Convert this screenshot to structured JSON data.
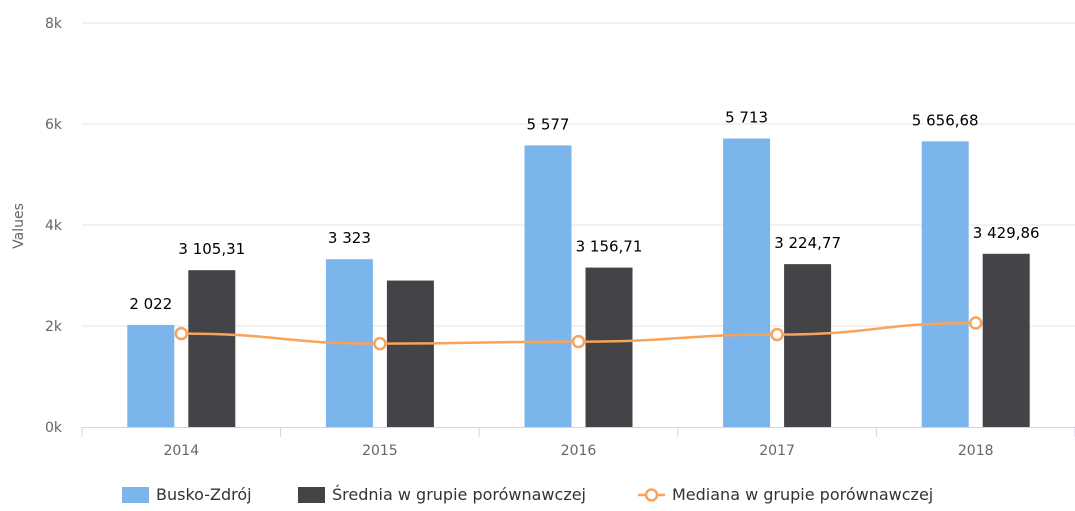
{
  "chart_data": {
    "type": "bar",
    "title": "",
    "xlabel": "",
    "ylabel": "Values",
    "categories": [
      "2014",
      "2015",
      "2016",
      "2017",
      "2018"
    ],
    "ylim": [
      0,
      8000
    ],
    "yticks": [
      0,
      2000,
      4000,
      6000,
      8000
    ],
    "ytick_labels": [
      "0k",
      "2k",
      "4k",
      "6k",
      "8k"
    ],
    "grid": true,
    "legend_position": "bottom",
    "series": [
      {
        "name": "Busko-Zdrój",
        "kind": "bar",
        "color": "#7cb5ec",
        "values": [
          2022,
          3323,
          5577,
          5713,
          5656.68
        ],
        "labels": [
          "2 022",
          "3 323",
          "5 577",
          "5 713",
          "5 656,68"
        ]
      },
      {
        "name": "Średnia w grupie porównawczej",
        "kind": "bar",
        "color": "#434348",
        "values": [
          3105.31,
          2900,
          3156.71,
          3224.77,
          3429.86
        ],
        "labels": [
          "3 105,31",
          "",
          "3 156,71",
          "3 224,77",
          "3 429,86"
        ]
      },
      {
        "name": "Mediana w grupie porównawczej",
        "kind": "line",
        "color": "#f7a35c",
        "values": [
          1850,
          1650,
          1690,
          1830,
          2060
        ]
      }
    ]
  }
}
